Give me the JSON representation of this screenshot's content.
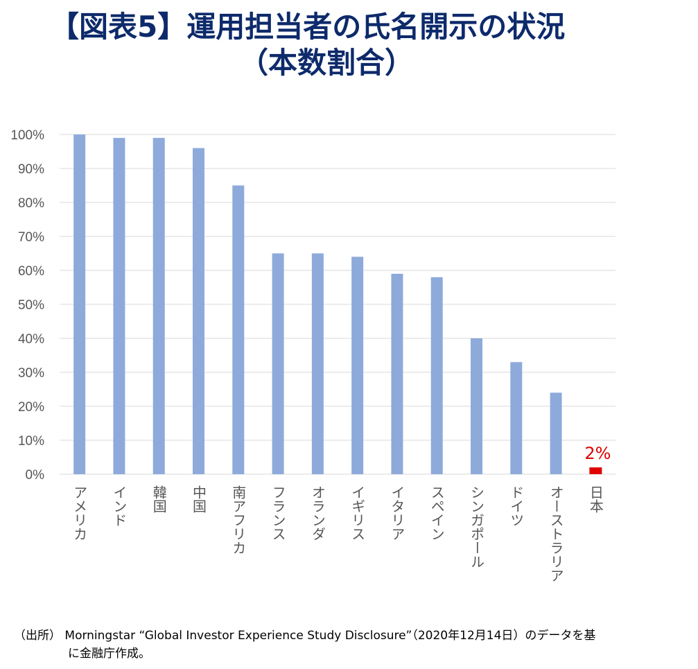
{
  "title_line1": "【図表5】運用担当者の氏名開示の状況",
  "title_line2": "（本数割合）",
  "chart_data": {
    "type": "bar",
    "categories": [
      "アメリカ",
      "インド",
      "韓国",
      "中国",
      "南アフリカ",
      "フランス",
      "オランダ",
      "イギリス",
      "イタリア",
      "スペイン",
      "シンガポール",
      "ドイツ",
      "オーストラリア",
      "日本"
    ],
    "values": [
      100,
      99,
      99,
      96,
      85,
      65,
      65,
      64,
      59,
      58,
      40,
      33,
      24,
      2
    ],
    "ylim": [
      0,
      100
    ],
    "yticks": [
      "0%",
      "10%",
      "20%",
      "30%",
      "40%",
      "50%",
      "60%",
      "70%",
      "80%",
      "90%",
      "100%"
    ],
    "grid": true,
    "colors": {
      "bar": "#8eaadb",
      "highlight": "#e00000",
      "grid": "#d9d9d9"
    },
    "highlight_category": "日本",
    "annotation": "2%"
  },
  "source_line1": "（出所） Morningstar “Global Investor Experience Study Disclosure”（2020年12月14日）のデータを基",
  "source_line2": "に金融庁作成。"
}
